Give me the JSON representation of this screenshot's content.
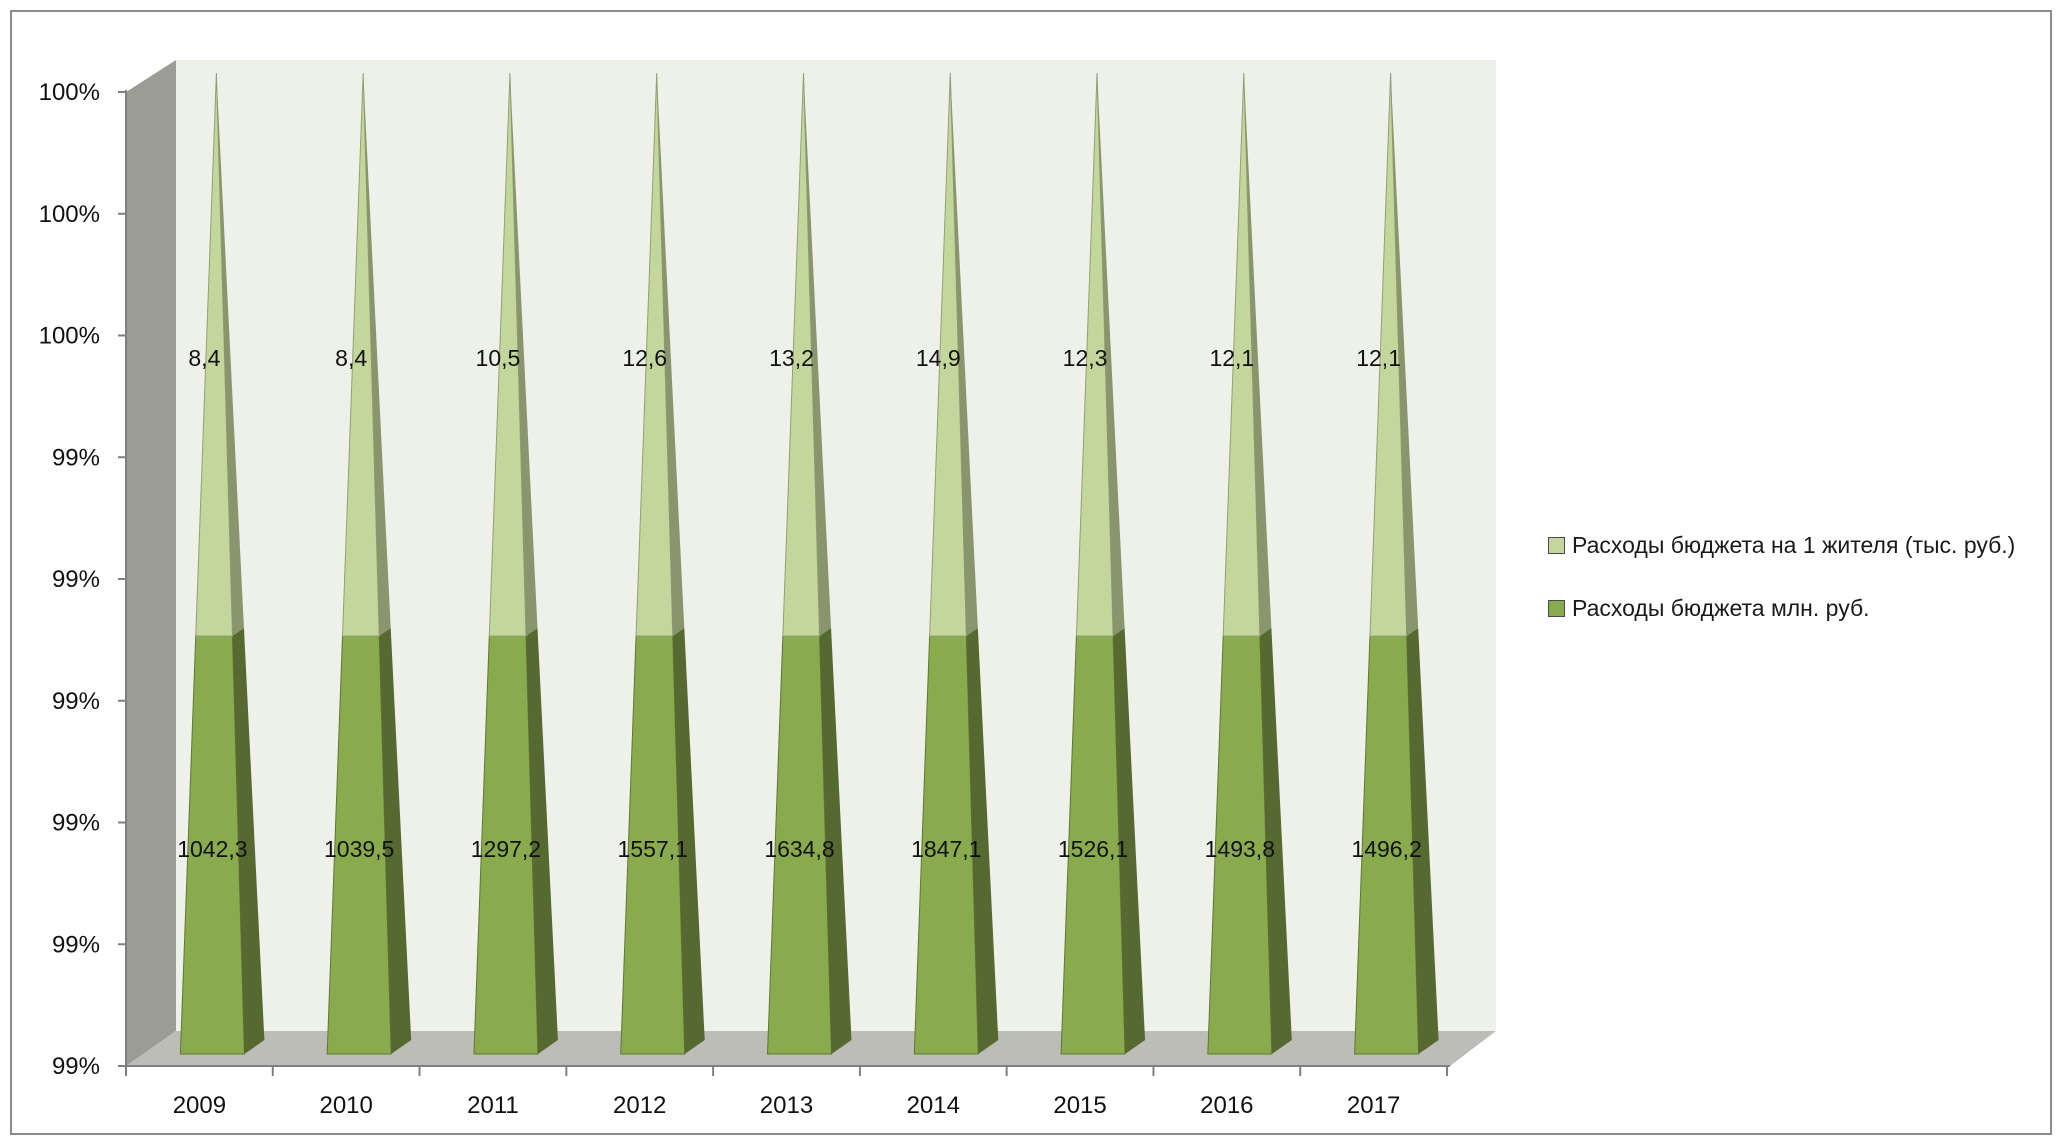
{
  "chart_data": {
    "type": "bar",
    "style": "stacked 100% 3D pyramid",
    "categories": [
      "2009",
      "2010",
      "2011",
      "2012",
      "2013",
      "2014",
      "2015",
      "2016",
      "2017"
    ],
    "series": [
      {
        "name": "Расходы бюджета млн. руб.",
        "color": "#8aaa4e",
        "values": [
          1042.3,
          1039.5,
          1297.2,
          1557.1,
          1634.8,
          1847.1,
          1526.1,
          1493.8,
          1496.2
        ],
        "labels": [
          "1042,3",
          "1039,5",
          "1297,2",
          "1557,1",
          "1634,8",
          "1847,1",
          "1526,1",
          "1493,8",
          "1496,2"
        ]
      },
      {
        "name": "Расходы бюджета на 1 жителя (тыс. руб.)",
        "color": "#c3d69b",
        "values": [
          8.4,
          8.4,
          10.5,
          12.6,
          13.2,
          14.9,
          12.3,
          12.1,
          12.1
        ],
        "labels": [
          "8,4",
          "8,4",
          "10,5",
          "12,6",
          "13,2",
          "14,9",
          "12,3",
          "12,1",
          "12,1"
        ]
      }
    ],
    "y_tick_labels": [
      "99%",
      "99%",
      "99%",
      "99%",
      "99%",
      "99%",
      "100%",
      "100%",
      "100%"
    ],
    "ylim": [
      0.993,
      1.0
    ],
    "xlabel": "",
    "ylabel": "",
    "title": "",
    "grid": false,
    "legend_position": "right",
    "colors": {
      "back_wall": "#eef0ea",
      "side_wall": "#9a9c95",
      "floor": "#bcbdb6"
    }
  },
  "legend": {
    "items": [
      {
        "label": "Расходы бюджета на 1 жителя (тыс. руб.)",
        "color": "#c3d69b"
      },
      {
        "label": "Расходы бюджета млн. руб.",
        "color": "#8aaa4e"
      }
    ]
  }
}
